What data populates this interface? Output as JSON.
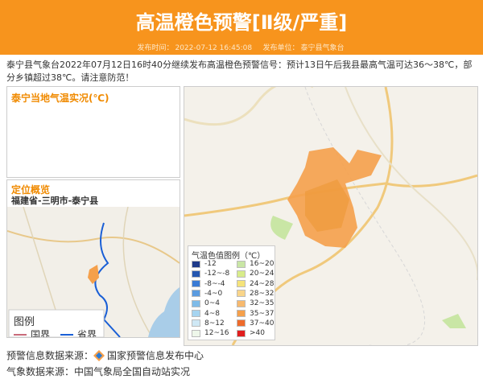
{
  "header": {
    "title": "高温橙色预警[Ⅱ级/严重]",
    "publish_time_label": "发布时间：",
    "publish_time": "2022-07-12 16:45:08",
    "publisher_label": "发布单位：",
    "publisher": "泰宁县气象台"
  },
  "content": "泰宁县气象台2022年07月12日16时40分继续发布高温橙色预警信号：预计13日午后我县最高气温可达36～38℃，部分乡镇超过38℃。请注意防范！",
  "temperature_panel": {
    "title": "泰宁当地气温实况(℃)"
  },
  "location_panel": {
    "title": "定位概览",
    "path": "福建省-三明市-泰宁县",
    "legend": {
      "title": "图例",
      "items": [
        {
          "label": "国界",
          "color": "#c96b7a"
        },
        {
          "label": "省界",
          "color": "#1a5fd6"
        }
      ]
    }
  },
  "temperature_map": {
    "legend": {
      "title": "气温色值图例（℃）",
      "items": [
        {
          "label": "-12",
          "color": "#1e3a8a"
        },
        {
          "label": "-12~-8",
          "color": "#2557b0"
        },
        {
          "label": "-8~-4",
          "color": "#3a7bd5"
        },
        {
          "label": "-4~0",
          "color": "#5a9be0"
        },
        {
          "label": "0~4",
          "color": "#7fbbe8"
        },
        {
          "label": "4~8",
          "color": "#a6d4f0"
        },
        {
          "label": "8~12",
          "color": "#cfe8f5"
        },
        {
          "label": "12~16",
          "color": "#eef7ea"
        },
        {
          "label": "16~20",
          "color": "#c9e6a5"
        },
        {
          "label": "20~24",
          "color": "#d8ec8a"
        },
        {
          "label": "24~28",
          "color": "#f5e37a"
        },
        {
          "label": "28~32",
          "color": "#f9d58a"
        },
        {
          "label": "32~35",
          "color": "#f7b96e"
        },
        {
          "label": "35~37",
          "color": "#f5a04b"
        },
        {
          "label": "37~40",
          "color": "#ee6b2b"
        },
        {
          "label": ">40",
          "color": "#e01e1e"
        }
      ]
    }
  },
  "footer": {
    "warning_source_label": "预警信息数据来源：",
    "warning_source": "国家预警信息发布中心",
    "weather_source_label": "气象数据来源：",
    "weather_source": "中国气象局全国自动站实况"
  }
}
